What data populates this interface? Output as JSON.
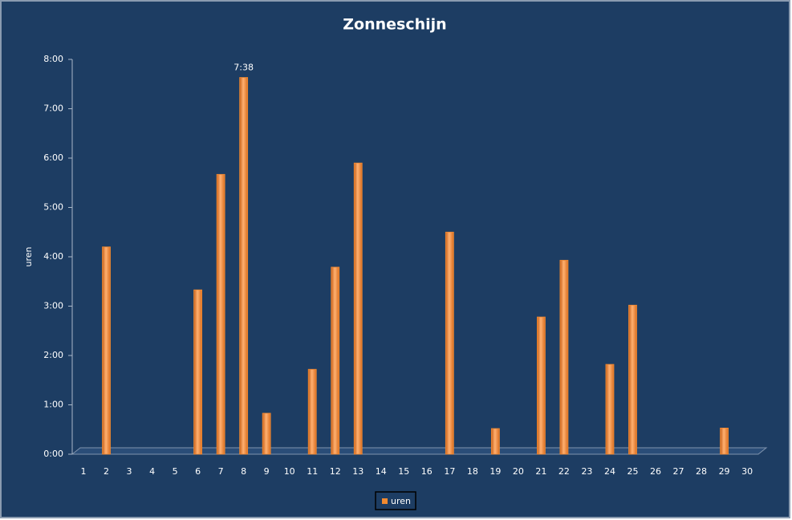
{
  "chart_data": {
    "type": "bar",
    "title": "Zonneschijn",
    "y_label": "uren",
    "categories": [
      1,
      2,
      3,
      4,
      5,
      6,
      7,
      8,
      9,
      10,
      11,
      12,
      13,
      14,
      15,
      16,
      17,
      18,
      19,
      20,
      21,
      22,
      23,
      24,
      25,
      26,
      27,
      28,
      29,
      30
    ],
    "series": [
      {
        "name": "uren",
        "color": "#f28a30",
        "values": [
          0,
          4.2,
          0,
          0,
          0,
          3.33,
          5.67,
          7.6333,
          0.83,
          0,
          1.72,
          3.79,
          5.9,
          0,
          0,
          0,
          4.5,
          0,
          0.52,
          0,
          2.78,
          3.93,
          0,
          1.82,
          3.02,
          0,
          0,
          0,
          0.53,
          0
        ],
        "value_labels": [
          null,
          null,
          null,
          null,
          null,
          null,
          null,
          "7:38",
          null,
          null,
          null,
          null,
          null,
          null,
          null,
          null,
          null,
          null,
          null,
          null,
          null,
          null,
          null,
          null,
          null,
          null,
          null,
          null,
          null,
          null
        ]
      }
    ],
    "ylim": [
      0,
      8
    ],
    "yticks": [
      {
        "value": 0,
        "label": "0:00"
      },
      {
        "value": 1,
        "label": "1:00"
      },
      {
        "value": 2,
        "label": "2:00"
      },
      {
        "value": 3,
        "label": "3:00"
      },
      {
        "value": 4,
        "label": "4:00"
      },
      {
        "value": 5,
        "label": "5:00"
      },
      {
        "value": 6,
        "label": "6:00"
      },
      {
        "value": 7,
        "label": "7:00"
      },
      {
        "value": 8,
        "label": "8:00"
      }
    ],
    "legend": "bottom"
  }
}
